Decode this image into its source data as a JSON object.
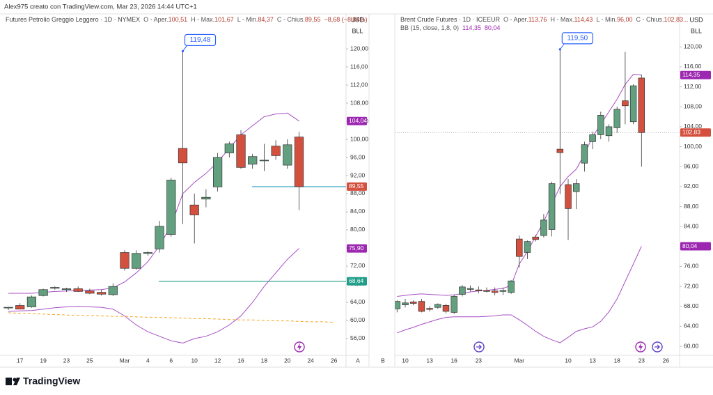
{
  "header": {
    "text": "Alex975 creato con TradingView.com, Mar 23, 2026 14:44 UTC+1"
  },
  "footer": {
    "logo": "TradingView"
  },
  "chart_data": [
    {
      "type": "candlestick",
      "title": "Futures Petrolio Greggio Leggero · 1D · NYMEX",
      "quote": [
        {
          "label": "O - Aper.",
          "value": "100,51"
        },
        {
          "label": "H - Max.",
          "value": "101,67"
        },
        {
          "label": "L - Min.",
          "value": "84,37"
        },
        {
          "label": "C - Chius.",
          "value": "89,55"
        }
      ],
      "change": "−8,68 (−8,84%)",
      "currency": "USD",
      "unit": "BLL",
      "axis_buttons": [
        "A",
        "B"
      ],
      "up_color": "#62a07f",
      "down_color": "#d4503e",
      "quote_color": "#b23b2e",
      "grid": false,
      "categories": [
        null,
        "17",
        null,
        "19",
        null,
        "23",
        null,
        "25",
        null,
        null,
        "Mar",
        null,
        "4",
        null,
        "6",
        null,
        "10",
        null,
        "12",
        null,
        "16",
        null,
        "18",
        null,
        "20",
        null,
        "24",
        null,
        "26"
      ],
      "open": [
        62.8,
        63.3,
        63,
        65.5,
        67.1,
        66.8,
        67,
        66.5,
        66.2,
        65.7,
        75,
        71.5,
        74.8,
        75.8,
        79,
        98,
        85.5,
        86.8,
        89.5,
        97,
        101,
        94.5,
        95.3,
        98.5,
        94.3,
        100.51,
        null,
        null,
        null
      ],
      "high": [
        63,
        63.8,
        65.5,
        67,
        67.5,
        67.2,
        67.5,
        67,
        66.8,
        68.2,
        75.5,
        75.5,
        75.3,
        82,
        91.5,
        119.48,
        88,
        89,
        97,
        99.5,
        102,
        96.8,
        99,
        99.8,
        100,
        101.67,
        null,
        null,
        null
      ],
      "low": [
        62.3,
        62.5,
        62.8,
        65.3,
        66.8,
        66.3,
        66.3,
        65.8,
        65.5,
        65.4,
        71,
        71.2,
        74.3,
        75,
        78.5,
        81.3,
        77,
        85,
        88.5,
        96,
        93.5,
        93.5,
        93,
        95.5,
        93.5,
        84.37,
        null,
        null,
        null
      ],
      "close": [
        62.9,
        62.5,
        65.2,
        66.8,
        67.3,
        67,
        66.4,
        66,
        65.8,
        67.5,
        71.5,
        74.8,
        75,
        80.8,
        91,
        94.8,
        83.3,
        87.2,
        96,
        99,
        93.8,
        96.2,
        95.4,
        96.4,
        98.8,
        89.55,
        null,
        null,
        null
      ],
      "lines": [
        {
          "color": "#a64fc4",
          "style": "solid",
          "values": [
            66,
            66,
            66,
            66.2,
            66.4,
            66.5,
            66.6,
            66.7,
            66.8,
            67.2,
            68.5,
            70.5,
            73,
            76.5,
            81,
            88,
            90.5,
            92.5,
            95,
            98,
            101,
            103,
            105,
            105.6,
            105.8,
            104.04,
            null,
            null,
            null
          ]
        },
        {
          "color": "#a64fc4",
          "style": "solid",
          "values": [
            62,
            62.1,
            62.2,
            62.5,
            62.8,
            63,
            63.1,
            63,
            62.9,
            62.5,
            61,
            59,
            57.5,
            56.5,
            55.5,
            55,
            56,
            56.5,
            57.5,
            59,
            61,
            64,
            67.5,
            70.5,
            73.5,
            75.9,
            null,
            null,
            null
          ]
        },
        {
          "color": "#f5a623",
          "style": "dashed",
          "values": [
            61.7,
            61.6,
            61.5,
            61.4,
            61.3,
            61.2,
            61.1,
            61.1,
            61,
            60.9,
            60.9,
            60.8,
            60.7,
            60.7,
            60.6,
            60.5,
            60.4,
            60.4,
            60.3,
            60.2,
            60.1,
            60.1,
            60,
            59.9,
            59.9,
            59.8,
            59.7,
            59.7,
            59.6
          ]
        }
      ],
      "price_tags": [
        {
          "value": 104.04,
          "label": "104,04",
          "color": "#9c27b0"
        },
        {
          "value": 89.55,
          "label": "89,55",
          "color": "#d4503e",
          "line_color": "#2e9fc4"
        },
        {
          "value": 75.9,
          "label": "75,90",
          "color": "#9c27b0"
        },
        {
          "value": 68.64,
          "label": "68,64",
          "color": "#1f9e89",
          "line_color": "#1f9e89"
        }
      ],
      "callout": {
        "value": 119.48,
        "label": "119,48"
      },
      "ylim": [
        52.3,
        127.7
      ],
      "yticks": [
        {
          "value": 56,
          "label": "56,00"
        },
        {
          "value": 60,
          "label": "60,00"
        },
        {
          "value": 64,
          "label": "64,00"
        },
        {
          "value": 68,
          "label": "68,00"
        },
        {
          "value": 72,
          "label": "72,00"
        },
        {
          "value": 76,
          "label": "76,00"
        },
        {
          "value": 80,
          "label": "80,00"
        },
        {
          "value": 84,
          "label": "84,00"
        },
        {
          "value": 88,
          "label": "88,00"
        },
        {
          "value": 92,
          "label": "92,00"
        },
        {
          "value": 96,
          "label": "96,00"
        },
        {
          "value": 100,
          "label": "100,00"
        },
        {
          "value": 104,
          "label": "104,00"
        },
        {
          "value": 108,
          "label": "108,00"
        },
        {
          "value": 112,
          "label": "112,00"
        },
        {
          "value": 116,
          "label": "116,00"
        },
        {
          "value": 120,
          "label": "120,00"
        }
      ]
    },
    {
      "type": "candlestick",
      "title": "Brent Crude Futures · 1D · ICEEUR",
      "quote": [
        {
          "label": "O - Aper.",
          "value": "113,76"
        },
        {
          "label": "H - Max.",
          "value": "114,43"
        },
        {
          "label": "L - Min.",
          "value": "96,00"
        },
        {
          "label": "C - Chius.",
          "value": "102,83..."
        }
      ],
      "indicator": {
        "label": "BB (15, close, 1,8, 0)",
        "values": [
          "114,35",
          "80,04"
        ],
        "color": "#9c27b0"
      },
      "currency": "USD",
      "unit": "BLL",
      "up_color": "#62a07f",
      "down_color": "#d4503e",
      "quote_color": "#b23b2e",
      "grid": false,
      "categories": [
        null,
        "10",
        null,
        null,
        "13",
        null,
        null,
        "16",
        null,
        null,
        "23",
        null,
        null,
        null,
        null,
        "Mar",
        null,
        null,
        null,
        null,
        null,
        "10",
        null,
        null,
        "13",
        null,
        null,
        "18",
        null,
        null,
        "23",
        null,
        null,
        "26"
      ],
      "open": [
        67.5,
        68.3,
        68.9,
        69,
        67.6,
        67.8,
        68.2,
        66.8,
        70.4,
        71.4,
        71.3,
        71.2,
        71.1,
        71,
        70.8,
        81.5,
        78.8,
        81.9,
        82.2,
        83.4,
        99.5,
        92.4,
        91,
        96.7,
        101,
        102.4,
        102.2,
        103.8,
        109.2,
        105,
        113.76,
        null,
        null,
        null
      ],
      "high": [
        69.2,
        69.5,
        69.2,
        69.5,
        68,
        68.6,
        68.5,
        70.3,
        72.3,
        72.2,
        72,
        71.8,
        71.8,
        71.8,
        73.3,
        82.2,
        81.2,
        82.3,
        86.5,
        93,
        119.5,
        93.5,
        93.5,
        101,
        103,
        107,
        104.5,
        108,
        119,
        112.5,
        114.43,
        null,
        null,
        null
      ],
      "low": [
        66.8,
        67.8,
        68.2,
        66.8,
        67,
        67.5,
        66.6,
        66.5,
        70,
        71,
        70.6,
        70.8,
        70.2,
        70.3,
        70.5,
        75.8,
        77.5,
        81,
        81.8,
        82,
        90.5,
        81.3,
        87.5,
        95,
        99.5,
        101.5,
        101,
        102.8,
        104.5,
        104.5,
        96,
        null,
        null,
        null
      ],
      "close": [
        69,
        68.7,
        68.6,
        67,
        67.4,
        68.4,
        67,
        70,
        71.9,
        71.6,
        71.1,
        71,
        70.8,
        71.2,
        73.1,
        78,
        81,
        81.4,
        85.3,
        92.6,
        98.8,
        87.6,
        92.6,
        100.4,
        102.4,
        106.3,
        104,
        107.5,
        108.2,
        112.2,
        102.83,
        null,
        null,
        null
      ],
      "lines": [
        {
          "color": "#a64fc4",
          "style": "solid",
          "values": [
            70,
            70.2,
            70.4,
            70.5,
            70.4,
            70.3,
            70.2,
            70.3,
            70.6,
            70.9,
            71.1,
            71.2,
            71.4,
            71.6,
            72.2,
            76.5,
            79,
            82,
            85,
            88.5,
            92,
            94,
            95.5,
            98.5,
            102,
            104.5,
            107,
            109.5,
            112.5,
            114.5,
            114.35,
            null,
            null,
            null
          ]
        },
        {
          "color": "#a64fc4",
          "style": "solid",
          "values": [
            62.7,
            63.3,
            63.8,
            64.4,
            64.9,
            65.4,
            65.8,
            65.9,
            65.9,
            65.9,
            65.9,
            66,
            66.1,
            66.3,
            66.3,
            65.3,
            64.2,
            63,
            62,
            61.3,
            60.7,
            61.8,
            63,
            63.5,
            63.9,
            65,
            66.9,
            69.5,
            73,
            76.5,
            80.04,
            null,
            null,
            null
          ]
        }
      ],
      "price_tags": [
        {
          "value": 114.35,
          "label": "114,35",
          "color": "#9c27b0"
        },
        {
          "value": 102.83,
          "label": "102,83",
          "color": "#d4503e",
          "line_color": "#9a9a9a"
        },
        {
          "value": 80.04,
          "label": "80,04",
          "color": "#9c27b0"
        }
      ],
      "callout": {
        "value": 119.5,
        "label": "119,50"
      },
      "ylim": [
        58.2,
        126.6
      ],
      "yticks": [
        {
          "value": 60,
          "label": "60,00"
        },
        {
          "value": 64,
          "label": "64,00"
        },
        {
          "value": 68,
          "label": "68,00"
        },
        {
          "value": 72,
          "label": "72,00"
        },
        {
          "value": 76,
          "label": "76,00"
        },
        {
          "value": 80,
          "label": "80,00"
        },
        {
          "value": 84,
          "label": "84,00"
        },
        {
          "value": 88,
          "label": "88,00"
        },
        {
          "value": 92,
          "label": "92,00"
        },
        {
          "value": 96,
          "label": "96,00"
        },
        {
          "value": 100,
          "label": "100,00"
        },
        {
          "value": 104,
          "label": "104,00"
        },
        {
          "value": 108,
          "label": "108,00"
        },
        {
          "value": 112,
          "label": "112,00"
        },
        {
          "value": 116,
          "label": "116,00"
        },
        {
          "value": 120,
          "label": "120,00"
        }
      ]
    }
  ]
}
